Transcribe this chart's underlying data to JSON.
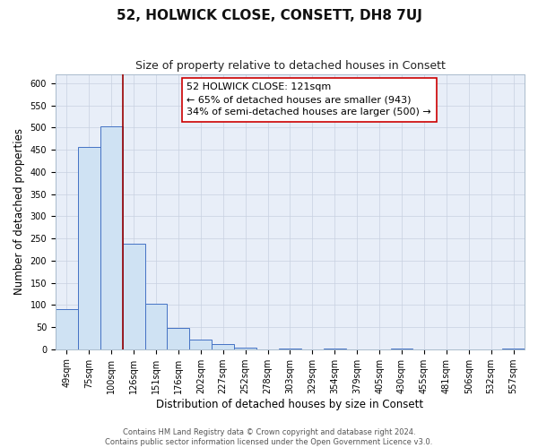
{
  "title": "52, HOLWICK CLOSE, CONSETT, DH8 7UJ",
  "subtitle": "Size of property relative to detached houses in Consett",
  "xlabel": "Distribution of detached houses by size in Consett",
  "ylabel": "Number of detached properties",
  "bar_labels": [
    "49sqm",
    "75sqm",
    "100sqm",
    "126sqm",
    "151sqm",
    "176sqm",
    "202sqm",
    "227sqm",
    "252sqm",
    "278sqm",
    "303sqm",
    "329sqm",
    "354sqm",
    "379sqm",
    "405sqm",
    "430sqm",
    "455sqm",
    "481sqm",
    "506sqm",
    "532sqm",
    "557sqm"
  ],
  "bar_values": [
    90,
    456,
    503,
    237,
    103,
    47,
    22,
    12,
    3,
    0,
    1,
    0,
    1,
    0,
    0,
    1,
    0,
    0,
    0,
    0,
    1
  ],
  "bar_color": "#cfe2f3",
  "bar_edge_color": "#4472c4",
  "vline_color": "#990000",
  "annotation_title": "52 HOLWICK CLOSE: 121sqm",
  "annotation_line1": "← 65% of detached houses are smaller (943)",
  "annotation_line2": "34% of semi-detached houses are larger (500) →",
  "ylim": [
    0,
    620
  ],
  "yticks": [
    0,
    50,
    100,
    150,
    200,
    250,
    300,
    350,
    400,
    450,
    500,
    550,
    600
  ],
  "footer1": "Contains HM Land Registry data © Crown copyright and database right 2024.",
  "footer2": "Contains public sector information licensed under the Open Government Licence v3.0.",
  "title_fontsize": 11,
  "subtitle_fontsize": 9,
  "xlabel_fontsize": 8.5,
  "ylabel_fontsize": 8.5,
  "tick_fontsize": 7,
  "annotation_fontsize": 8,
  "footer_fontsize": 6,
  "background_color": "#ffffff",
  "plot_background": "#e8eef8"
}
